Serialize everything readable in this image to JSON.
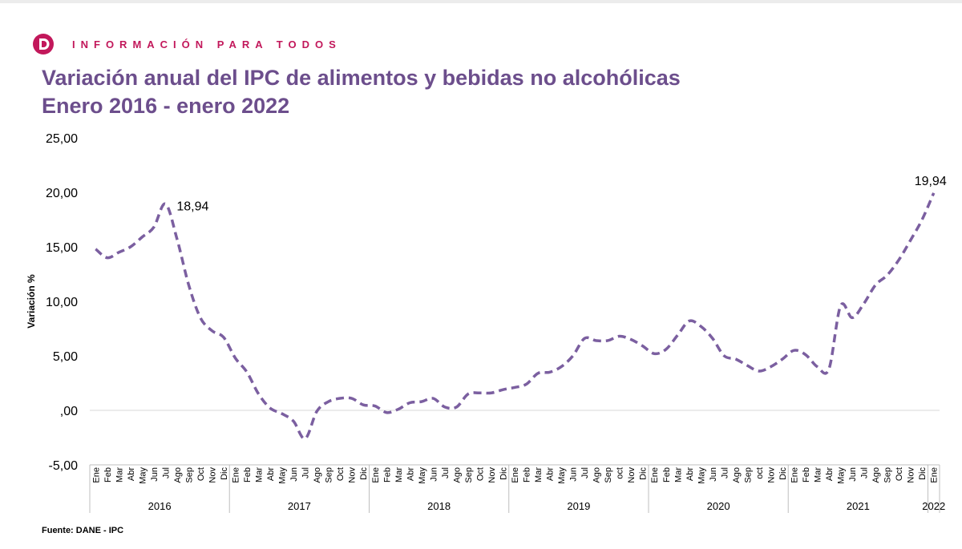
{
  "header": {
    "tagline": "INFORMACIÓN PARA TODOS",
    "title_line1": "Variación anual del IPC de alimentos y bebidas no alcohólicas",
    "title_line2": "Enero 2016 - enero 2022",
    "source": "Fuente: DANE - IPC"
  },
  "colors": {
    "brand": "#c2185b",
    "title": "#6c4e8c",
    "line": "#7b5fa0"
  },
  "chart_data": {
    "type": "line",
    "ylabel": "Variación %",
    "ylim": [
      -5,
      25
    ],
    "yticks": [
      -5,
      0,
      5,
      10,
      15,
      20,
      25
    ],
    "ytick_labels": [
      "-5,00",
      ",00",
      "5,00",
      "10,00",
      "15,00",
      "20,00",
      "25,00"
    ],
    "line_style": "dashed",
    "groups": [
      {
        "year": "2016",
        "months": [
          "Ene",
          "Feb",
          "Mar",
          "Abr",
          "May",
          "Jun",
          "Jul",
          "Ago",
          "Sep",
          "Oct",
          "Nov",
          "Dic"
        ]
      },
      {
        "year": "2017",
        "months": [
          "Ene",
          "Feb",
          "Mar",
          "Abr",
          "May",
          "Jun",
          "Jul",
          "Ago",
          "Sep",
          "Oct",
          "Nov",
          "Dic"
        ]
      },
      {
        "year": "2018",
        "months": [
          "Ene",
          "Feb",
          "Mar",
          "Abr",
          "May",
          "Jun",
          "Jul",
          "Ago",
          "Sep",
          "Oct",
          "Nov",
          "Dic"
        ]
      },
      {
        "year": "2019",
        "months": [
          "Ene",
          "Feb",
          "Mar",
          "Abr",
          "May",
          "Jun",
          "Jul",
          "Ago",
          "Sep",
          "oct",
          "Nov",
          "Dic"
        ]
      },
      {
        "year": "2020",
        "months": [
          "Ene",
          "Feb",
          "Mar",
          "Abr",
          "May",
          "Jun",
          "Jul",
          "Ago",
          "Sep",
          "oct",
          "Nov",
          "Dic"
        ]
      },
      {
        "year": "2021",
        "months": [
          "Ene",
          "Feb",
          "Mar",
          "Abr",
          "May",
          "Jun",
          "Jul",
          "Ago",
          "Sep",
          "Oct",
          "Nov",
          "Dic"
        ]
      },
      {
        "year": "2022",
        "months": [
          "Ene"
        ]
      }
    ],
    "values": [
      14.8,
      14.0,
      14.5,
      15.0,
      15.9,
      16.8,
      18.94,
      15.7,
      11.5,
      8.5,
      7.3,
      6.7,
      4.8,
      3.5,
      1.5,
      0.2,
      -0.3,
      -1.0,
      -2.6,
      -0.1,
      0.8,
      1.1,
      1.1,
      0.5,
      0.4,
      -0.2,
      0.1,
      0.7,
      0.8,
      1.1,
      0.3,
      0.3,
      1.5,
      1.6,
      1.6,
      1.9,
      2.1,
      2.4,
      3.4,
      3.5,
      4.0,
      5.0,
      6.6,
      6.4,
      6.4,
      6.8,
      6.5,
      5.9,
      5.2,
      5.6,
      6.9,
      8.2,
      7.7,
      6.6,
      5.0,
      4.7,
      4.1,
      3.6,
      4.0,
      4.7,
      5.5,
      5.1,
      4.0,
      3.8,
      9.6,
      8.5,
      9.8,
      11.5,
      12.4,
      13.8,
      15.6,
      17.5,
      19.94
    ],
    "annotations": [
      {
        "index": 6,
        "label": "18,94"
      },
      {
        "index": 72,
        "label": "19,94"
      }
    ]
  }
}
